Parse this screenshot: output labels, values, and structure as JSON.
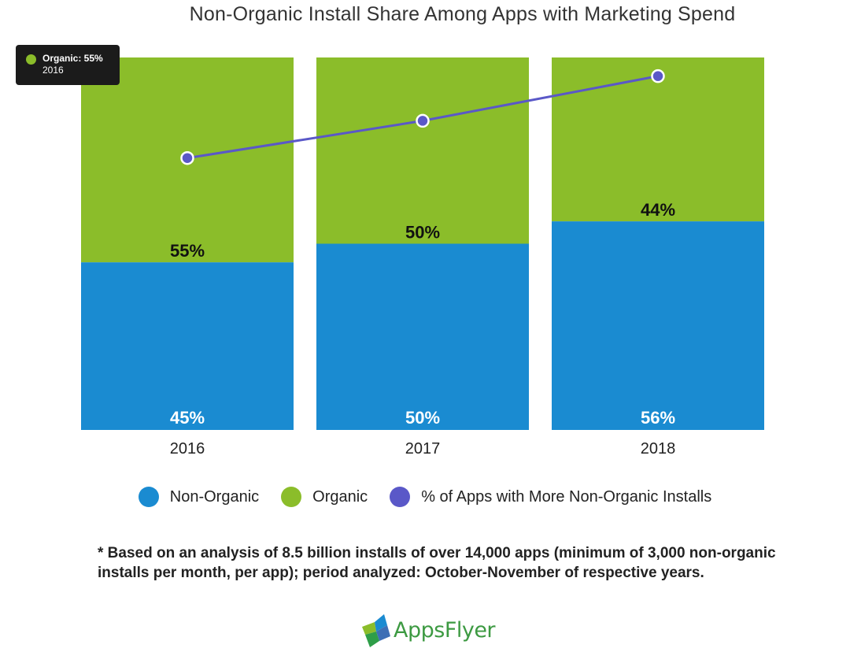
{
  "title": "Non-Organic Install Share Among Apps with Marketing Spend",
  "colors": {
    "non_organic": "#1a8bd1",
    "organic": "#8bbd2a",
    "line": "#5a58c8",
    "tooltip_bg": "#1b1b1b"
  },
  "chart_data": {
    "type": "bar",
    "stacked": true,
    "categories": [
      "2016",
      "2017",
      "2018"
    ],
    "series": [
      {
        "name": "Non-Organic",
        "values": [
          45,
          50,
          56
        ],
        "labels": [
          "45%",
          "50%",
          "56%"
        ]
      },
      {
        "name": "Organic",
        "values": [
          55,
          50,
          44
        ],
        "labels": [
          "55%",
          "50%",
          "44%"
        ]
      }
    ],
    "line_series": {
      "name": "% of Apps with More Non-Organic Installs",
      "values": [
        73,
        83,
        95
      ]
    },
    "ylim": [
      0,
      100
    ],
    "legend_position": "bottom",
    "grid": false
  },
  "legend": [
    {
      "label": "Non-Organic",
      "color": "#1a8bd1"
    },
    {
      "label": "Organic",
      "color": "#8bbd2a"
    },
    {
      "label": "% of Apps with More Non-Organic Installs",
      "color": "#5a58c8"
    }
  ],
  "tooltip": {
    "title": "Organic: 55%",
    "subtitle": "2016",
    "color": "#8bbd2a"
  },
  "footnote": "* Based on an analysis of 8.5 billion installs of over 14,000 apps (minimum of 3,000 non-organic installs per month, per app); period analyzed: October-November of respective years.",
  "logo": {
    "text": "AppsFlyer"
  }
}
